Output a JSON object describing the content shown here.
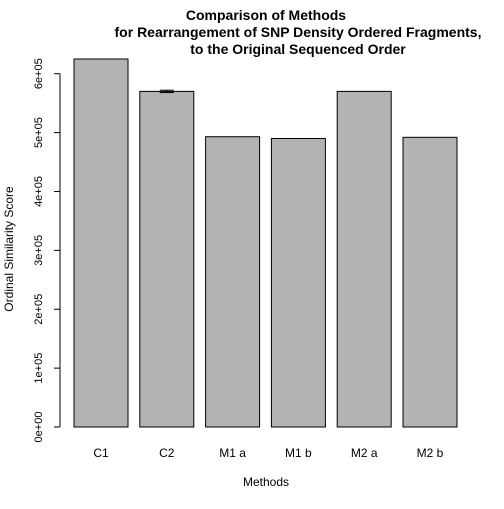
{
  "chart_data": {
    "type": "bar",
    "title_lines": [
      "Comparison of Methods",
      "for Rearrangement of SNP Density Ordered Fragments,",
      "to the Original Sequenced Order"
    ],
    "xlabel": "Methods",
    "ylabel": "Ordinal Similarity Score",
    "categories": [
      "C1",
      "C2",
      "M1 a",
      "M1 b",
      "M2 a",
      "M2 b"
    ],
    "values": [
      625000,
      570000,
      493000,
      490000,
      570000,
      492000
    ],
    "errors": [
      0,
      2000,
      0,
      0,
      0,
      0
    ],
    "ylim": [
      0,
      625000
    ],
    "yticks": [
      0,
      100000,
      200000,
      300000,
      400000,
      500000,
      600000
    ],
    "ytick_labels": [
      "0e+00",
      "1e+05",
      "2e+05",
      "3e+05",
      "4e+05",
      "5e+05",
      "6e+05"
    ],
    "bar_color": "#b3b3b3",
    "bar_border_color": "#000000",
    "grid": false
  }
}
